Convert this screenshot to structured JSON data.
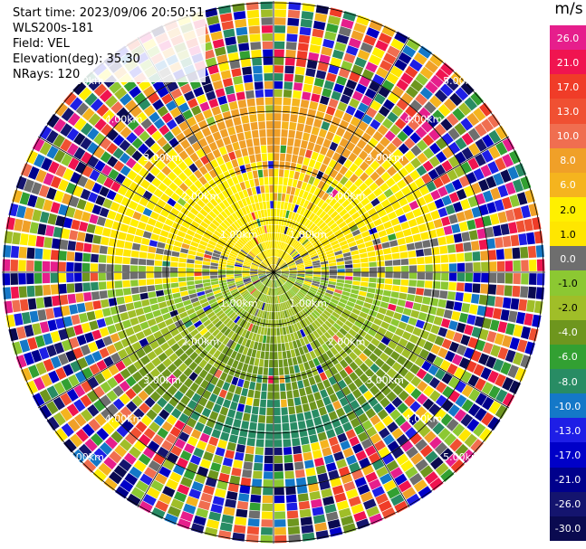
{
  "header": {
    "start_time": "Start time: 2023/09/06 20:50:51",
    "instrument": "WLS200s-181",
    "field": "Field: VEL",
    "elevation": "Elevation(deg): 35.30",
    "nrays": "NRays: 120"
  },
  "colorbar": {
    "unit": "m/s",
    "levels": [
      {
        "label": "26.0",
        "color": "#e61e8c"
      },
      {
        "label": "21.0",
        "color": "#f01450"
      },
      {
        "label": "17.0",
        "color": "#f03c28"
      },
      {
        "label": "13.0",
        "color": "#f05032"
      },
      {
        "label": "10.0",
        "color": "#f06e50"
      },
      {
        "label": "8.0",
        "color": "#f0a028"
      },
      {
        "label": "6.0",
        "color": "#f5b41e"
      },
      {
        "label": "2.0",
        "color": "#fff000"
      },
      {
        "label": "1.0",
        "color": "#ffe600"
      },
      {
        "label": "0.0",
        "color": "#6e6e6e"
      },
      {
        "label": "-1.0",
        "color": "#8cc832"
      },
      {
        "label": "-2.0",
        "color": "#a0be28"
      },
      {
        "label": "-4.0",
        "color": "#6e961e"
      },
      {
        "label": "-6.0",
        "color": "#32a032"
      },
      {
        "label": "-8.0",
        "color": "#288c64"
      },
      {
        "label": "-10.0",
        "color": "#1478c8"
      },
      {
        "label": "-13.0",
        "color": "#1e1ee6"
      },
      {
        "label": "-17.0",
        "color": "#0000c8"
      },
      {
        "label": "-21.0",
        "color": "#00008c"
      },
      {
        "label": "-26.0",
        "color": "#14146e"
      },
      {
        "label": "-30.0",
        "color": "#0a0a50"
      }
    ]
  },
  "ring_labels": [
    "1.00km",
    "2.00km",
    "3.00km",
    "4.00km",
    "5.00km"
  ]
}
